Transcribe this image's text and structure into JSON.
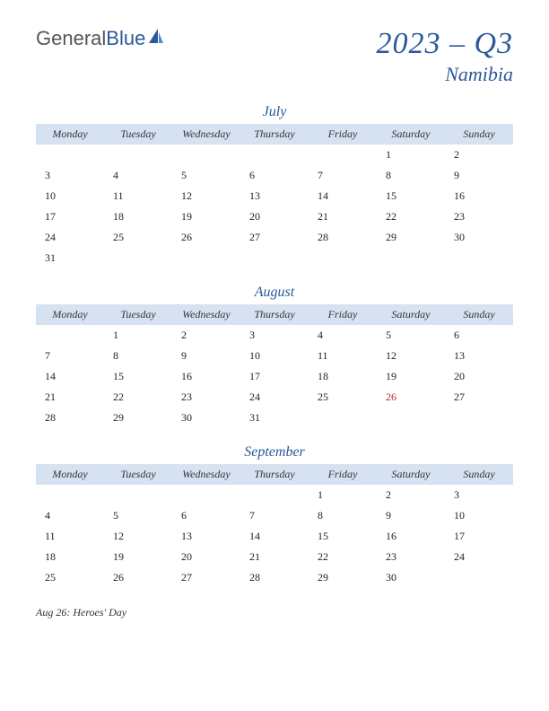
{
  "logo": {
    "general": "General",
    "blue": "Blue"
  },
  "title": {
    "main": "2023 – Q3",
    "sub": "Namibia"
  },
  "day_headers": [
    "Monday",
    "Tuesday",
    "Wednesday",
    "Thursday",
    "Friday",
    "Saturday",
    "Sunday"
  ],
  "months": [
    {
      "name": "July",
      "weeks": [
        [
          "",
          "",
          "",
          "",
          "",
          "1",
          "2"
        ],
        [
          "3",
          "4",
          "5",
          "6",
          "7",
          "8",
          "9"
        ],
        [
          "10",
          "11",
          "12",
          "13",
          "14",
          "15",
          "16"
        ],
        [
          "17",
          "18",
          "19",
          "20",
          "21",
          "22",
          "23"
        ],
        [
          "24",
          "25",
          "26",
          "27",
          "28",
          "29",
          "30"
        ],
        [
          "31",
          "",
          "",
          "",
          "",
          "",
          ""
        ]
      ],
      "holidays": []
    },
    {
      "name": "August",
      "weeks": [
        [
          "",
          "1",
          "2",
          "3",
          "4",
          "5",
          "6"
        ],
        [
          "7",
          "8",
          "9",
          "10",
          "11",
          "12",
          "13"
        ],
        [
          "14",
          "15",
          "16",
          "17",
          "18",
          "19",
          "20"
        ],
        [
          "21",
          "22",
          "23",
          "24",
          "25",
          "26",
          "27"
        ],
        [
          "28",
          "29",
          "30",
          "31",
          "",
          "",
          ""
        ]
      ],
      "holidays": [
        "26"
      ]
    },
    {
      "name": "September",
      "weeks": [
        [
          "",
          "",
          "",
          "",
          "1",
          "2",
          "3"
        ],
        [
          "4",
          "5",
          "6",
          "7",
          "8",
          "9",
          "10"
        ],
        [
          "11",
          "12",
          "13",
          "14",
          "15",
          "16",
          "17"
        ],
        [
          "18",
          "19",
          "20",
          "21",
          "22",
          "23",
          "24"
        ],
        [
          "25",
          "26",
          "27",
          "28",
          "29",
          "30",
          ""
        ]
      ],
      "holidays": []
    }
  ],
  "holiday_notes": [
    "Aug 26: Heroes' Day"
  ],
  "colors": {
    "accent": "#2a5a9a",
    "header_bg": "#d6e2f2",
    "holiday": "#c62828",
    "text": "#222222",
    "background": "#ffffff"
  }
}
